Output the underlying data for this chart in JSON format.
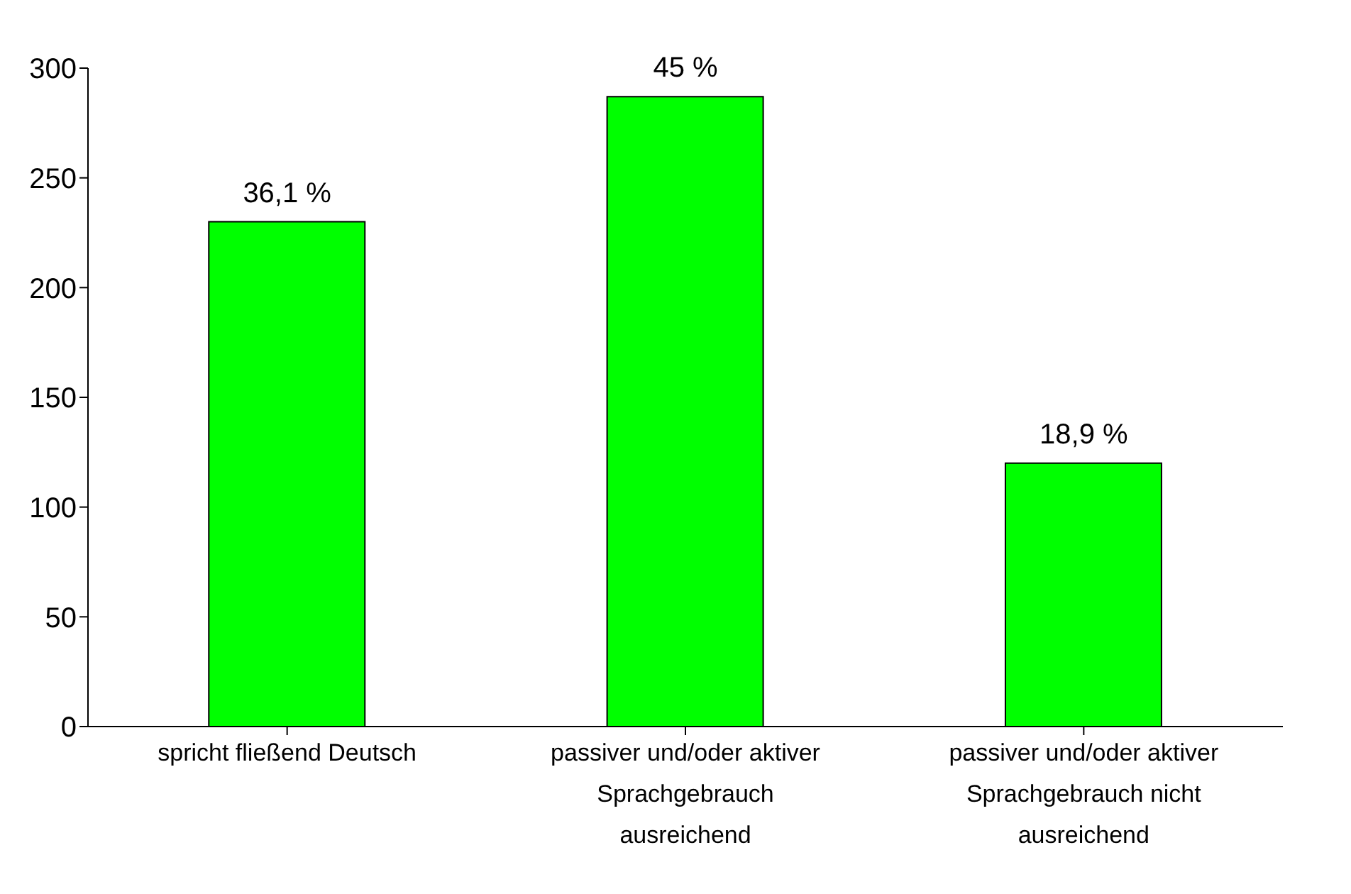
{
  "chart_data": {
    "type": "bar",
    "categories": [
      "spricht fließend Deutsch",
      "passiver und/oder aktiver Sprachgebrauch ausreichend",
      "passiver und/oder aktiver Sprachgebrauch nicht ausreichend"
    ],
    "values": [
      230,
      287,
      120
    ],
    "color": "#00ff00",
    "annotations": [
      {
        "text": "36,1 %",
        "x": "spricht fließend Deutsch",
        "y": 230
      },
      {
        "text": "45 %",
        "x": "passiver und/oder aktiver Sprachgebrauch ausreichend",
        "y": 287
      },
      {
        "text": "18,9 %",
        "x": "passiver und/oder aktiver Sprachgebrauch nicht ausreichend",
        "y": 120
      }
    ],
    "ylim": [
      0,
      300
    ],
    "yticks": [
      0,
      50,
      100,
      150,
      200,
      250,
      300
    ],
    "grid": false,
    "legend": false
  }
}
